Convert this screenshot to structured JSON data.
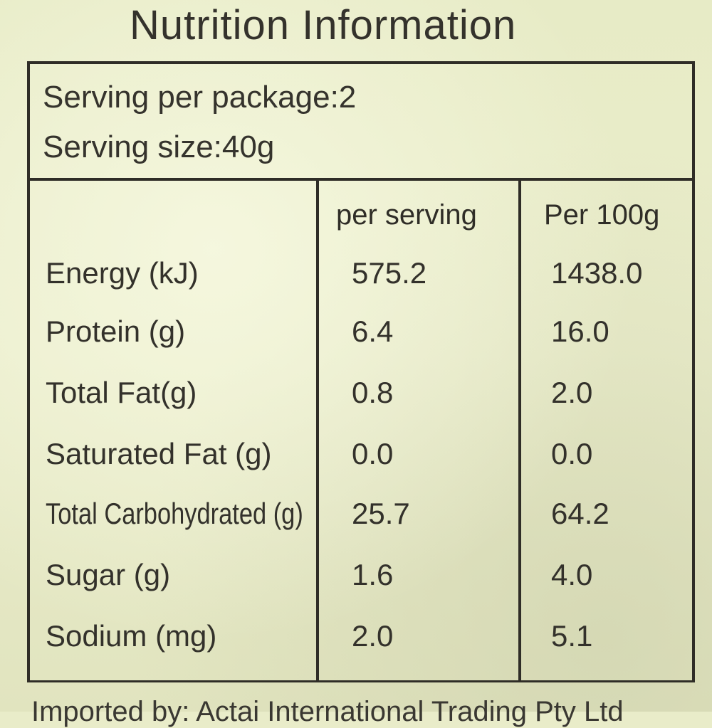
{
  "title": "Nutrition Information",
  "serving": {
    "per_package": "Serving per package:2",
    "size": "Serving size:40g"
  },
  "columns": {
    "per_serving": "per serving",
    "per_100g": "Per 100g"
  },
  "rows": [
    {
      "name": "Energy (kJ)",
      "per_serving": "575.2",
      "per_100g": "1438.0"
    },
    {
      "name": "Protein (g)",
      "per_serving": "6.4",
      "per_100g": "16.0"
    },
    {
      "name": "Total Fat(g)",
      "per_serving": "0.8",
      "per_100g": "2.0"
    },
    {
      "name": "Saturated Fat (g)",
      "per_serving": "0.0",
      "per_100g": "0.0"
    },
    {
      "name": "Total Carbohydrated (g)",
      "per_serving": "25.7",
      "per_100g": "64.2"
    },
    {
      "name": "Sugar (g)",
      "per_serving": "1.6",
      "per_100g": "4.0"
    },
    {
      "name": "Sodium (mg)",
      "per_serving": "2.0",
      "per_100g": "5.1"
    }
  ],
  "footer": "Imported by: Actai International Trading Pty Ltd"
}
